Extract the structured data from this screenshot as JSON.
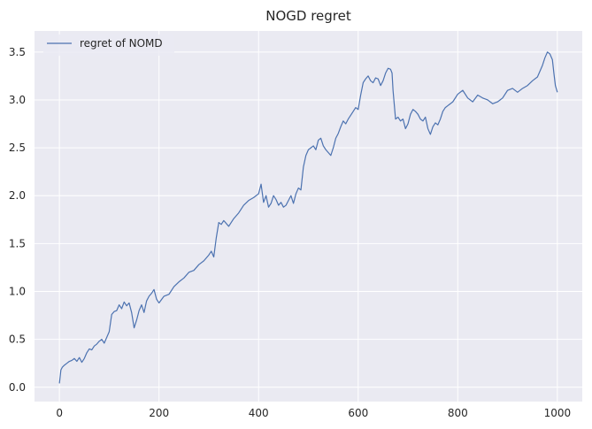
{
  "chart_data": {
    "type": "line",
    "title": "NOGD regret",
    "xlabel": "",
    "ylabel": "",
    "xlim": [
      -50,
      1050
    ],
    "ylim": [
      -0.15,
      3.72
    ],
    "xticks": [
      0,
      200,
      400,
      600,
      800,
      1000
    ],
    "xtick_labels": [
      "0",
      "200",
      "400",
      "600",
      "800",
      "1000"
    ],
    "yticks": [
      0.0,
      0.5,
      1.0,
      1.5,
      2.0,
      2.5,
      3.0,
      3.5
    ],
    "ytick_labels": [
      "0.0",
      "0.5",
      "1.0",
      "1.5",
      "2.0",
      "2.5",
      "3.0",
      "3.5"
    ],
    "grid": true,
    "legend_position": "upper-left",
    "background_color": "#eaeaf2",
    "grid_color": "#ffffff",
    "series": [
      {
        "name": "regret of NOMD",
        "color": "#4c72b0",
        "x": [
          0,
          3,
          6,
          10,
          15,
          20,
          25,
          30,
          35,
          40,
          45,
          50,
          55,
          60,
          65,
          70,
          75,
          80,
          85,
          90,
          95,
          100,
          105,
          110,
          115,
          120,
          125,
          130,
          135,
          140,
          145,
          150,
          155,
          160,
          165,
          170,
          175,
          180,
          185,
          190,
          195,
          200,
          210,
          220,
          230,
          240,
          250,
          260,
          270,
          280,
          290,
          300,
          305,
          310,
          315,
          320,
          325,
          330,
          340,
          350,
          360,
          370,
          380,
          390,
          400,
          405,
          410,
          415,
          420,
          425,
          430,
          435,
          440,
          445,
          450,
          455,
          460,
          465,
          470,
          475,
          480,
          485,
          490,
          495,
          500,
          505,
          510,
          515,
          520,
          525,
          530,
          535,
          540,
          545,
          550,
          555,
          560,
          565,
          570,
          575,
          580,
          585,
          590,
          595,
          600,
          605,
          610,
          615,
          620,
          625,
          630,
          635,
          640,
          645,
          650,
          655,
          660,
          665,
          668,
          670,
          675,
          680,
          685,
          690,
          695,
          700,
          705,
          710,
          715,
          720,
          725,
          730,
          735,
          740,
          745,
          750,
          755,
          760,
          765,
          770,
          775,
          780,
          790,
          800,
          810,
          820,
          830,
          840,
          850,
          860,
          870,
          880,
          890,
          900,
          910,
          920,
          930,
          940,
          950,
          960,
          965,
          970,
          975,
          980,
          985,
          990,
          993,
          996,
          1000
        ],
        "y": [
          0.04,
          0.18,
          0.21,
          0.23,
          0.25,
          0.27,
          0.28,
          0.3,
          0.27,
          0.31,
          0.26,
          0.3,
          0.36,
          0.4,
          0.39,
          0.43,
          0.45,
          0.48,
          0.5,
          0.46,
          0.52,
          0.58,
          0.76,
          0.79,
          0.8,
          0.86,
          0.82,
          0.89,
          0.85,
          0.88,
          0.78,
          0.62,
          0.7,
          0.8,
          0.86,
          0.78,
          0.9,
          0.95,
          0.98,
          1.02,
          0.92,
          0.88,
          0.95,
          0.97,
          1.05,
          1.1,
          1.14,
          1.2,
          1.22,
          1.28,
          1.32,
          1.38,
          1.42,
          1.36,
          1.56,
          1.72,
          1.7,
          1.74,
          1.68,
          1.76,
          1.82,
          1.9,
          1.95,
          1.98,
          2.02,
          2.12,
          1.93,
          2.0,
          1.88,
          1.92,
          2.0,
          1.96,
          1.9,
          1.93,
          1.88,
          1.9,
          1.95,
          2.0,
          1.92,
          2.02,
          2.08,
          2.06,
          2.3,
          2.42,
          2.48,
          2.5,
          2.52,
          2.48,
          2.58,
          2.6,
          2.52,
          2.48,
          2.45,
          2.42,
          2.5,
          2.6,
          2.65,
          2.72,
          2.78,
          2.75,
          2.8,
          2.84,
          2.88,
          2.92,
          2.9,
          3.05,
          3.18,
          3.22,
          3.25,
          3.2,
          3.18,
          3.23,
          3.22,
          3.15,
          3.2,
          3.28,
          3.33,
          3.32,
          3.28,
          3.1,
          2.8,
          2.82,
          2.78,
          2.8,
          2.7,
          2.75,
          2.85,
          2.9,
          2.88,
          2.85,
          2.8,
          2.78,
          2.82,
          2.7,
          2.64,
          2.72,
          2.76,
          2.74,
          2.8,
          2.88,
          2.92,
          2.94,
          2.98,
          3.06,
          3.1,
          3.02,
          2.98,
          3.05,
          3.02,
          3.0,
          2.96,
          2.98,
          3.02,
          3.1,
          3.12,
          3.08,
          3.12,
          3.15,
          3.2,
          3.24,
          3.3,
          3.36,
          3.44,
          3.5,
          3.48,
          3.42,
          3.28,
          3.15,
          3.08
        ]
      }
    ]
  }
}
